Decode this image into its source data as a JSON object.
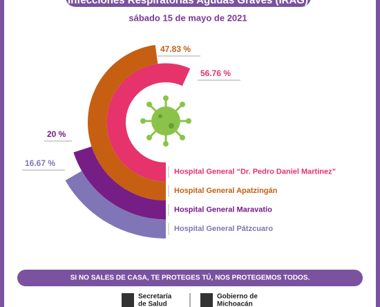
{
  "chart_data": {
    "type": "radial_bar",
    "title": "Infecciones Respiratorias Agudas Graves (IRAG)",
    "subtitle": "sábado 15 de mayo de 2021",
    "categories": [
      "Hospital General “Dr. Pedro Daniel Martinez”",
      "Hospital General Apatzingán",
      "Hospital General Maravatío",
      "Hospital General Pátzcuaro"
    ],
    "values": [
      56.76,
      47.83,
      20,
      16.67
    ],
    "value_labels": [
      "56.76 %",
      "47.83 %",
      "20 %",
      "16.67 %"
    ],
    "colors": [
      "#e6336b",
      "#c65f12",
      "#761e86",
      "#8075b6"
    ]
  },
  "footer": {
    "slogan": "SI NO SALES DE CASA, TE PROTEGES TÚ, NOS PROTEGEMOS TODOS.",
    "logos": [
      [
        "Secretaría",
        "de Salud"
      ],
      [
        "Gobierno de",
        "Michoacán"
      ]
    ]
  }
}
